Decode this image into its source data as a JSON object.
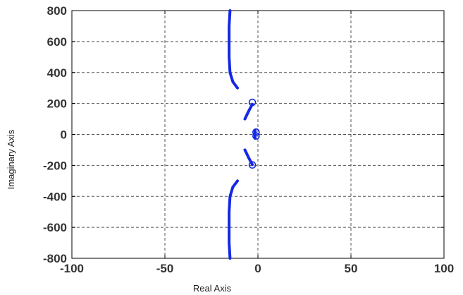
{
  "chart_data": {
    "type": "scatter",
    "title": "",
    "xlabel": "Real Axis",
    "ylabel": "Imaginary Axis",
    "xlim": [
      -100,
      100
    ],
    "ylim": [
      -800,
      800
    ],
    "x_ticks": [
      -100,
      -50,
      0,
      50,
      100
    ],
    "y_ticks": [
      800,
      600,
      400,
      200,
      0,
      -200,
      -400,
      -600,
      -800
    ],
    "x_tick_labels": [
      "-100",
      "-50",
      "0",
      "50",
      "100"
    ],
    "y_tick_labels": [
      "800",
      "600",
      "400",
      "200",
      "0",
      "-200",
      "-400",
      "-600",
      "-800"
    ],
    "grid": true,
    "legend": "none",
    "line_color": "#1428e6",
    "series": [
      {
        "values": [
          [
            -15,
            800
          ],
          [
            -15.5,
            700
          ],
          [
            -15.5,
            600
          ],
          [
            -15.5,
            500
          ],
          [
            -15,
            400
          ],
          [
            -13.5,
            340
          ],
          [
            -11,
            300
          ]
        ]
      },
      {
        "values": [
          [
            -15,
            -800
          ],
          [
            -15.5,
            -700
          ],
          [
            -15.5,
            -600
          ],
          [
            -15.5,
            -500
          ],
          [
            -15,
            -400
          ],
          [
            -13.5,
            -340
          ],
          [
            -11,
            -300
          ]
        ]
      },
      {
        "values": [
          [
            -7,
            100
          ],
          [
            -5,
            150
          ],
          [
            -3,
            195
          ]
        ]
      },
      {
        "values": [
          [
            -7,
            -100
          ],
          [
            -5,
            -150
          ],
          [
            -3,
            -195
          ]
        ]
      },
      {
        "values": [
          [
            -1.5,
            25
          ],
          [
            -1.5,
            0
          ],
          [
            -1.5,
            -25
          ]
        ]
      }
    ],
    "zeros": [
      [
        -3,
        207
      ],
      [
        -3,
        -197
      ],
      [
        -1,
        15
      ],
      [
        -1,
        -10
      ]
    ]
  }
}
